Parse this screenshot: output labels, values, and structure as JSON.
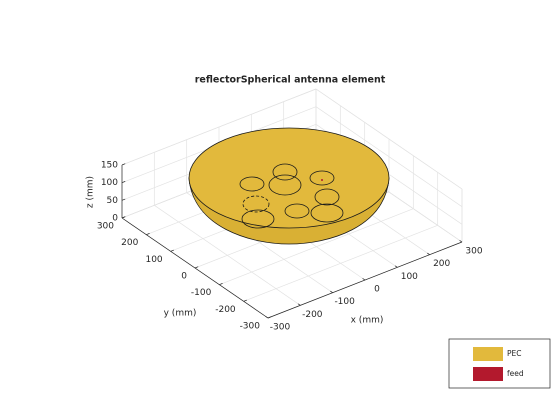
{
  "chart_data": {
    "type": "antenna3d",
    "title": "reflectorSpherical antenna element",
    "xlabel": "x (mm)",
    "ylabel": "y (mm)",
    "zlabel": "z (mm)",
    "xlim": [
      -300,
      300
    ],
    "ylim": [
      -300,
      300
    ],
    "zlim": [
      0,
      150
    ],
    "xticks": [
      -300,
      -200,
      -100,
      0,
      100,
      200,
      300
    ],
    "yticks": [
      -300,
      -200,
      -100,
      0,
      100,
      200,
      300
    ],
    "zticks": [
      0,
      50,
      100,
      150
    ],
    "grid": true,
    "legend": [
      {
        "name": "PEC",
        "color": "#e2b93c"
      },
      {
        "name": "feed",
        "color": "#b3192d"
      }
    ]
  }
}
